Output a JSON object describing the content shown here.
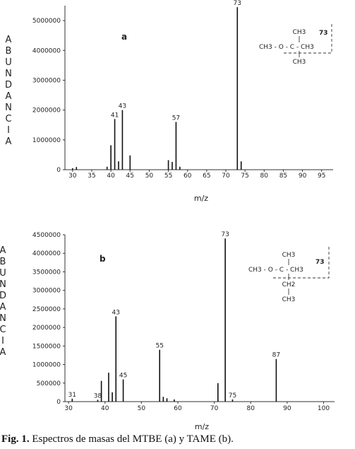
{
  "caption": {
    "label": "Fig. 1.",
    "text": " Espectros de masas del MTBE (a) y TAME (b)."
  },
  "chart_data": [
    {
      "type": "bar",
      "panel_label": "a",
      "ylabel": "ABUNDANCIA",
      "xlabel": "m/z",
      "xlim": [
        28,
        98
      ],
      "ylim": [
        0,
        5500000
      ],
      "xticks": [
        "30",
        "35",
        "40",
        "45",
        "50",
        "55",
        "60",
        "65",
        "70",
        "75",
        "80",
        "85",
        "90",
        "95"
      ],
      "yticks": [
        "0",
        "1000000",
        "2000000",
        "3000000",
        "4000000",
        "5000000"
      ],
      "peaks": [
        {
          "mz": 30,
          "value": 50000
        },
        {
          "mz": 31,
          "value": 90000
        },
        {
          "mz": 39,
          "value": 100000
        },
        {
          "mz": 40,
          "value": 820000
        },
        {
          "mz": 41,
          "value": 1700000,
          "label": "41"
        },
        {
          "mz": 42,
          "value": 280000
        },
        {
          "mz": 43,
          "value": 2000000,
          "label": "43"
        },
        {
          "mz": 45,
          "value": 480000
        },
        {
          "mz": 55,
          "value": 320000
        },
        {
          "mz": 56,
          "value": 260000
        },
        {
          "mz": 57,
          "value": 1600000,
          "label": "57"
        },
        {
          "mz": 58,
          "value": 100000
        },
        {
          "mz": 73,
          "value": 5450000,
          "label": "73"
        },
        {
          "mz": 74,
          "value": 280000
        }
      ],
      "structure": {
        "fragment": "73",
        "top": "CH3",
        "middle": "CH3 - O - C - CH3",
        "bottom": "CH3"
      }
    },
    {
      "type": "bar",
      "panel_label": "b",
      "ylabel": "ABUNDANCIA",
      "xlabel": "m/z",
      "xlim": [
        29,
        103
      ],
      "ylim": [
        0,
        4500000
      ],
      "xticks": [
        "30",
        "40",
        "50",
        "60",
        "70",
        "80",
        "90",
        "100"
      ],
      "yticks": [
        "0",
        "500000",
        "1000000",
        "1500000",
        "2000000",
        "2500000",
        "3000000",
        "3500000",
        "4000000",
        "4500000"
      ],
      "peaks": [
        {
          "mz": 31,
          "value": 80000,
          "label": "31"
        },
        {
          "mz": 38,
          "value": 50000,
          "label": "38"
        },
        {
          "mz": 39,
          "value": 560000
        },
        {
          "mz": 41,
          "value": 780000
        },
        {
          "mz": 42,
          "value": 250000
        },
        {
          "mz": 43,
          "value": 2300000,
          "label": "43"
        },
        {
          "mz": 45,
          "value": 600000,
          "label": "45"
        },
        {
          "mz": 55,
          "value": 1400000,
          "label": "55"
        },
        {
          "mz": 56,
          "value": 130000
        },
        {
          "mz": 57,
          "value": 90000
        },
        {
          "mz": 59,
          "value": 60000
        },
        {
          "mz": 71,
          "value": 500000
        },
        {
          "mz": 73,
          "value": 4400000,
          "label": "73"
        },
        {
          "mz": 75,
          "value": 60000,
          "label": "75"
        },
        {
          "mz": 87,
          "value": 1150000,
          "label": "87"
        }
      ],
      "structure": {
        "fragment": "73",
        "top": "CH3",
        "middle": "CH3 - O - C - CH3",
        "lower": "CH2",
        "bottom": "CH3"
      }
    }
  ]
}
